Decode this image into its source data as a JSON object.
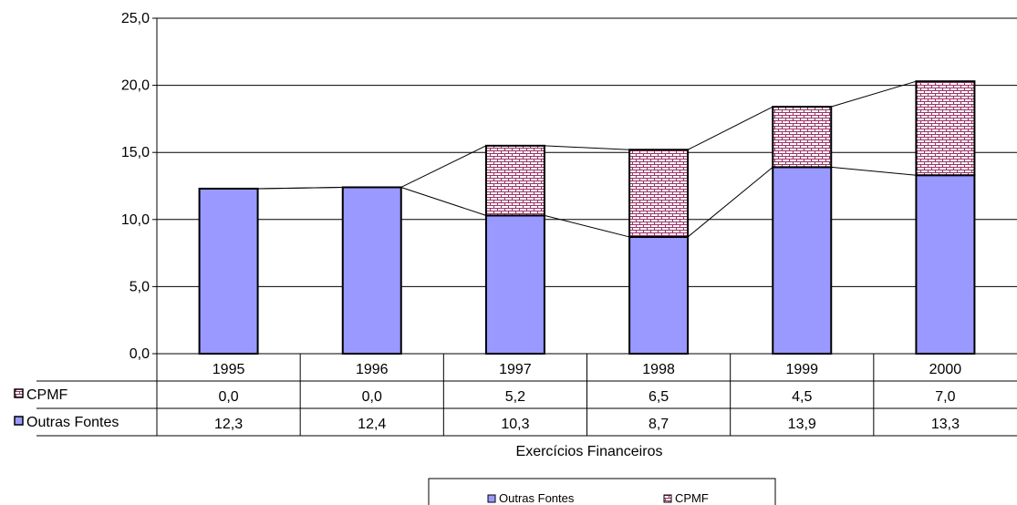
{
  "chart_data": {
    "type": "bar",
    "stacked": true,
    "categories": [
      "1995",
      "1996",
      "1997",
      "1998",
      "1999",
      "2000"
    ],
    "series": [
      {
        "name": "Outras Fontes",
        "values": [
          12.3,
          12.4,
          10.3,
          8.7,
          13.9,
          13.3
        ],
        "color": "#9999ff",
        "pattern": "solid"
      },
      {
        "name": "CPMF",
        "values": [
          0.0,
          0.0,
          5.2,
          6.5,
          4.5,
          7.0
        ],
        "color": "#993366",
        "pattern": "brick"
      }
    ],
    "table_rows": [
      {
        "label": "CPMF",
        "cells": [
          "0,0",
          "0,0",
          "5,2",
          "6,5",
          "4,5",
          "7,0"
        ]
      },
      {
        "label": "Outras Fontes",
        "cells": [
          "12,3",
          "12,4",
          "10,3",
          "8,7",
          "13,9",
          "13,3"
        ]
      }
    ],
    "yticks": [
      "0,0",
      "5,0",
      "10,0",
      "15,0",
      "20,0",
      "25,0"
    ],
    "ylim": [
      0,
      25
    ],
    "xlabel": "Exercícios Financeiros",
    "ylabel": "",
    "title": "",
    "grid": true,
    "legend": {
      "position": "bottom",
      "entries": [
        "Outras Fontes",
        "CPMF"
      ]
    }
  }
}
